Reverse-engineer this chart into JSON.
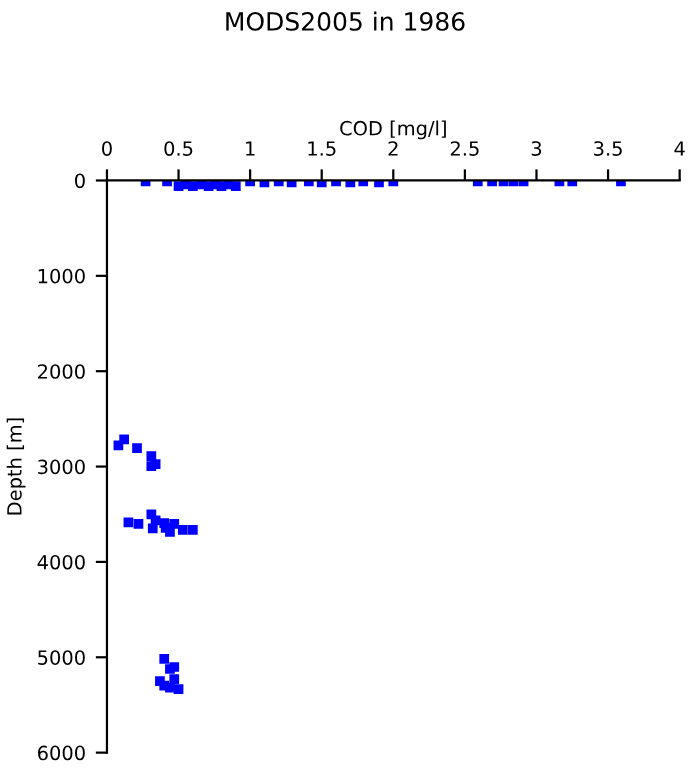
{
  "chart_data": {
    "type": "scatter",
    "title": "MODS2005 in 1986",
    "xlabel": "COD [mg/l]",
    "ylabel": "Depth [m]",
    "xlim": [
      0,
      4
    ],
    "xticks": [
      0,
      0.5,
      1,
      1.5,
      2,
      2.5,
      3,
      3.5,
      4
    ],
    "ylim": [
      6000,
      0
    ],
    "yticks": [
      0,
      1000,
      2000,
      3000,
      4000,
      5000,
      6000
    ],
    "marker": "square",
    "grid": false,
    "series": [
      {
        "color": "#0000ff",
        "x": [
          0.27,
          0.42,
          0.5,
          0.55,
          0.6,
          0.66,
          0.71,
          0.76,
          0.8,
          0.85,
          0.9,
          1.0,
          1.1,
          1.2,
          1.29,
          1.41,
          1.5,
          1.6,
          1.7,
          1.79,
          1.9,
          2.0,
          2.59,
          2.69,
          2.77,
          2.84,
          2.91,
          3.16,
          3.25,
          3.59,
          0.08,
          0.12,
          0.21,
          0.31,
          0.31,
          0.34,
          0.15,
          0.22,
          0.31,
          0.34,
          0.32,
          0.4,
          0.41,
          0.44,
          0.47,
          0.53,
          0.6,
          0.4,
          0.44,
          0.47,
          0.47,
          0.37,
          0.4,
          0.44,
          0.5
        ],
        "values": [
          10,
          10,
          60,
          40,
          60,
          40,
          60,
          40,
          60,
          40,
          60,
          10,
          20,
          10,
          20,
          10,
          20,
          10,
          20,
          10,
          20,
          10,
          10,
          10,
          10,
          10,
          10,
          10,
          10,
          10,
          2779,
          2716,
          2807,
          2891,
          2996,
          2975,
          3586,
          3600,
          3501,
          3564,
          3649,
          3594,
          3642,
          3684,
          3600,
          3663,
          3663,
          5017,
          5123,
          5102,
          5228,
          5249,
          5298,
          5319,
          5333
        ]
      }
    ]
  }
}
